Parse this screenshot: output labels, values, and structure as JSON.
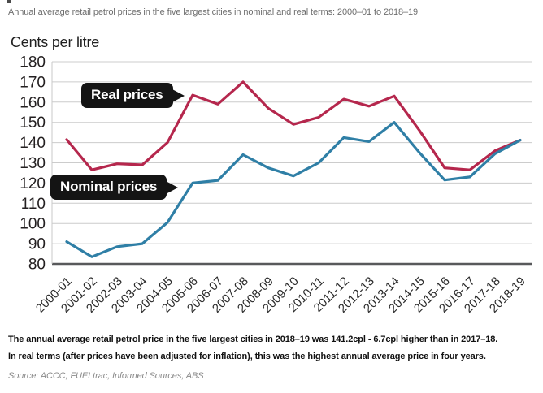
{
  "header": {
    "title": "Annual average retail petrol prices in the five largest cities in nominal and real terms: 2000–01 to 2018–19"
  },
  "chart_data": {
    "type": "line",
    "title": "Annual average retail petrol prices in the five largest cities in nominal and real terms: 2000–01 to 2018–19",
    "ylabel": "Cents per litre",
    "xlabel": "",
    "ylim": [
      80,
      180
    ],
    "yticks": [
      180,
      170,
      160,
      150,
      140,
      130,
      120,
      110,
      100,
      90,
      80
    ],
    "grid": true,
    "x_tick_rotation": 45,
    "legend_position": "annotated-on-chart",
    "categories": [
      "2000-01",
      "2001-02",
      "2002-03",
      "2003-04",
      "2004-05",
      "2005-06",
      "2006-07",
      "2007-08",
      "2008-09",
      "2009-10",
      "2010-11",
      "2011-12",
      "2012-13",
      "2013-14",
      "2014-15",
      "2015-16",
      "2016-17",
      "2017-18",
      "2018-19"
    ],
    "series": [
      {
        "name": "Real prices",
        "color": "#b5274d",
        "values": [
          141.5,
          126.5,
          129.5,
          129,
          140,
          163.5,
          159,
          170,
          157,
          149,
          152.5,
          161.5,
          158,
          163,
          146,
          127.5,
          126.5,
          136,
          141.2
        ]
      },
      {
        "name": "Nominal prices",
        "color": "#2f7fa6",
        "values": [
          91,
          83.5,
          88.5,
          90,
          100.5,
          120,
          121.3,
          134,
          127.5,
          123.5,
          130,
          142.5,
          140.5,
          150,
          135,
          121.5,
          123,
          134.5,
          141.2
        ]
      }
    ]
  },
  "footer": {
    "summary_line1": "The annual average retail petrol price in the five largest cities in 2018–19 was 141.2cpl - 6.7cpl higher than in 2017–18.",
    "summary_line2": "In real terms (after prices have been adjusted for inflation), this was the highest annual average price in four years.",
    "source": "Source: ACCC, FUELtrac, Informed Sources, ABS"
  },
  "colors": {
    "real_line": "#b5274d",
    "nominal_line": "#2f7fa6",
    "gridline": "#cccccc",
    "baseline": "#58595b",
    "axis_line": "#c9c9c9",
    "tick_text": "#231f20",
    "x_tick_text": "#2b2b2b",
    "callout_bg": "#141414",
    "callout_text": "#ffffff"
  }
}
